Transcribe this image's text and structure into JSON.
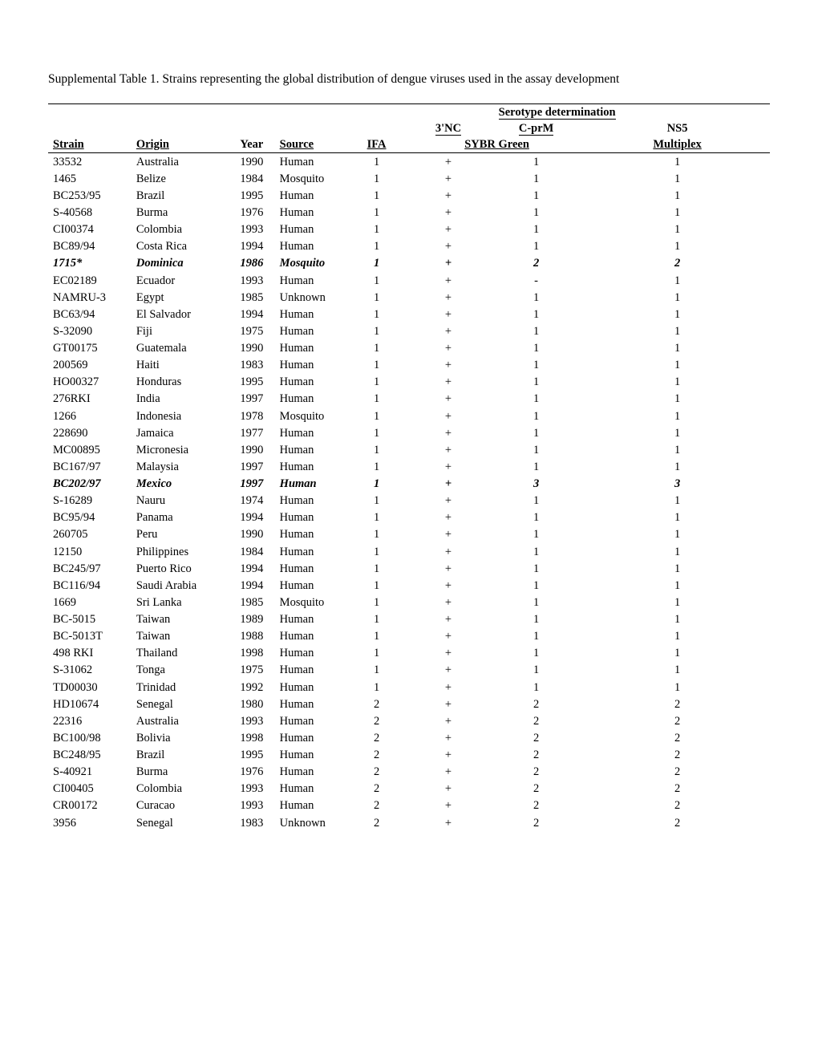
{
  "caption": "Supplemental Table 1.  Strains representing the global distribution of dengue viruses used in the assay development",
  "headers": {
    "serotype_group": "Serotype determination",
    "col_3nc": "3'NC",
    "col_cprm": "C-prM",
    "col_ns5": "NS5",
    "year": "Year",
    "strain": "Strain",
    "origin": "Origin",
    "source": "Source",
    "ifa": "IFA",
    "sybr": "SYBR Green",
    "multiplex": "Multiplex"
  },
  "rows": [
    {
      "strain": "33532",
      "origin": "Australia",
      "year": "1990",
      "source": "Human",
      "ifa": "1",
      "nc": "+",
      "cprm": "1",
      "ns5": "1"
    },
    {
      "strain": "1465",
      "origin": "Belize",
      "year": "1984",
      "source": "Mosquito",
      "ifa": "1",
      "nc": "+",
      "cprm": "1",
      "ns5": "1"
    },
    {
      "strain": "BC253/95",
      "origin": "Brazil",
      "year": "1995",
      "source": "Human",
      "ifa": "1",
      "nc": "+",
      "cprm": "1",
      "ns5": "1"
    },
    {
      "strain": "S-40568",
      "origin": "Burma",
      "year": "1976",
      "source": "Human",
      "ifa": "1",
      "nc": "+",
      "cprm": "1",
      "ns5": "1"
    },
    {
      "strain": "CI00374",
      "origin": "Colombia",
      "year": "1993",
      "source": "Human",
      "ifa": "1",
      "nc": "+",
      "cprm": "1",
      "ns5": "1"
    },
    {
      "strain": "BC89/94",
      "origin": "Costa Rica",
      "year": "1994",
      "source": "Human",
      "ifa": "1",
      "nc": "+",
      "cprm": "1",
      "ns5": "1"
    },
    {
      "strain": "1715*",
      "origin": "Dominica",
      "year": "1986",
      "source": "Mosquito",
      "ifa": "1",
      "nc": "+",
      "cprm": "2",
      "ns5": "2",
      "bold": true
    },
    {
      "strain": "EC02189",
      "origin": "Ecuador",
      "year": "1993",
      "source": "Human",
      "ifa": "1",
      "nc": "+",
      "cprm": "-",
      "ns5": "1"
    },
    {
      "strain": "NAMRU-3",
      "origin": "Egypt",
      "year": "1985",
      "source": "Unknown",
      "ifa": "1",
      "nc": "+",
      "cprm": "1",
      "ns5": "1"
    },
    {
      "strain": "BC63/94",
      "origin": "El Salvador",
      "year": "1994",
      "source": "Human",
      "ifa": "1",
      "nc": "+",
      "cprm": "1",
      "ns5": "1"
    },
    {
      "strain": "S-32090",
      "origin": "Fiji",
      "year": "1975",
      "source": "Human",
      "ifa": "1",
      "nc": "+",
      "cprm": "1",
      "ns5": "1"
    },
    {
      "strain": "GT00175",
      "origin": "Guatemala",
      "year": "1990",
      "source": "Human",
      "ifa": "1",
      "nc": "+",
      "cprm": "1",
      "ns5": "1"
    },
    {
      "strain": "200569",
      "origin": "Haiti",
      "year": "1983",
      "source": "Human",
      "ifa": "1",
      "nc": "+",
      "cprm": "1",
      "ns5": "1"
    },
    {
      "strain": "HO00327",
      "origin": "Honduras",
      "year": "1995",
      "source": "Human",
      "ifa": "1",
      "nc": "+",
      "cprm": "1",
      "ns5": "1"
    },
    {
      "strain": "276RKI",
      "origin": "India",
      "year": "1997",
      "source": "Human",
      "ifa": "1",
      "nc": "+",
      "cprm": "1",
      "ns5": "1"
    },
    {
      "strain": "1266",
      "origin": "Indonesia",
      "year": "1978",
      "source": "Mosquito",
      "ifa": "1",
      "nc": "+",
      "cprm": "1",
      "ns5": "1"
    },
    {
      "strain": "228690",
      "origin": "Jamaica",
      "year": "1977",
      "source": "Human",
      "ifa": "1",
      "nc": "+",
      "cprm": "1",
      "ns5": "1"
    },
    {
      "strain": "MC00895",
      "origin": "Micronesia",
      "year": "1990",
      "source": "Human",
      "ifa": "1",
      "nc": "+",
      "cprm": "1",
      "ns5": "1"
    },
    {
      "strain": "BC167/97",
      "origin": "Malaysia",
      "year": "1997",
      "source": "Human",
      "ifa": "1",
      "nc": "+",
      "cprm": "1",
      "ns5": "1"
    },
    {
      "strain": "BC202/97",
      "origin": "Mexico",
      "year": "1997",
      "source": "Human",
      "ifa": "1",
      "nc": "+",
      "cprm": "3",
      "ns5": "3",
      "bold": true
    },
    {
      "strain": "S-16289",
      "origin": "Nauru",
      "year": "1974",
      "source": "Human",
      "ifa": "1",
      "nc": "+",
      "cprm": "1",
      "ns5": "1"
    },
    {
      "strain": "BC95/94",
      "origin": "Panama",
      "year": "1994",
      "source": "Human",
      "ifa": "1",
      "nc": "+",
      "cprm": "1",
      "ns5": "1"
    },
    {
      "strain": "260705",
      "origin": "Peru",
      "year": "1990",
      "source": "Human",
      "ifa": "1",
      "nc": "+",
      "cprm": "1",
      "ns5": "1"
    },
    {
      "strain": "12150",
      "origin": "Philippines",
      "year": "1984",
      "source": "Human",
      "ifa": "1",
      "nc": "+",
      "cprm": "1",
      "ns5": "1"
    },
    {
      "strain": "BC245/97",
      "origin": "Puerto Rico",
      "year": "1994",
      "source": "Human",
      "ifa": "1",
      "nc": "+",
      "cprm": "1",
      "ns5": "1"
    },
    {
      "strain": "BC116/94",
      "origin": "Saudi Arabia",
      "year": "1994",
      "source": "Human",
      "ifa": "1",
      "nc": "+",
      "cprm": "1",
      "ns5": "1"
    },
    {
      "strain": "1669",
      "origin": "Sri Lanka",
      "year": "1985",
      "source": "Mosquito",
      "ifa": "1",
      "nc": "+",
      "cprm": "1",
      "ns5": "1"
    },
    {
      "strain": "BC-5015",
      "origin": "Taiwan",
      "year": "1989",
      "source": "Human",
      "ifa": "1",
      "nc": "+",
      "cprm": "1",
      "ns5": "1"
    },
    {
      "strain": "BC-5013T",
      "origin": "Taiwan",
      "year": "1988",
      "source": "Human",
      "ifa": "1",
      "nc": "+",
      "cprm": "1",
      "ns5": "1"
    },
    {
      "strain": "498 RKI",
      "origin": "Thailand",
      "year": "1998",
      "source": "Human",
      "ifa": "1",
      "nc": "+",
      "cprm": "1",
      "ns5": "1"
    },
    {
      "strain": "S-31062",
      "origin": "Tonga",
      "year": "1975",
      "source": "Human",
      "ifa": "1",
      "nc": "+",
      "cprm": "1",
      "ns5": "1"
    },
    {
      "strain": "TD00030",
      "origin": "Trinidad",
      "year": "1992",
      "source": "Human",
      "ifa": "1",
      "nc": "+",
      "cprm": "1",
      "ns5": "1"
    },
    {
      "strain": "HD10674",
      "origin": "Senegal",
      "year": "1980",
      "source": "Human",
      "ifa": "2",
      "nc": "+",
      "cprm": "2",
      "ns5": "2"
    },
    {
      "strain": "22316",
      "origin": "Australia",
      "year": "1993",
      "source": "Human",
      "ifa": "2",
      "nc": "+",
      "cprm": "2",
      "ns5": "2"
    },
    {
      "strain": "BC100/98",
      "origin": "Bolivia",
      "year": "1998",
      "source": "Human",
      "ifa": "2",
      "nc": "+",
      "cprm": "2",
      "ns5": "2"
    },
    {
      "strain": "BC248/95",
      "origin": "Brazil",
      "year": "1995",
      "source": "Human",
      "ifa": "2",
      "nc": "+",
      "cprm": "2",
      "ns5": "2"
    },
    {
      "strain": "S-40921",
      "origin": "Burma",
      "year": "1976",
      "source": "Human",
      "ifa": "2",
      "nc": "+",
      "cprm": "2",
      "ns5": "2"
    },
    {
      "strain": "CI00405",
      "origin": "Colombia",
      "year": "1993",
      "source": "Human",
      "ifa": "2",
      "nc": "+",
      "cprm": "2",
      "ns5": "2"
    },
    {
      "strain": "CR00172",
      "origin": "Curacao",
      "year": "1993",
      "source": "Human",
      "ifa": "2",
      "nc": "+",
      "cprm": "2",
      "ns5": "2"
    },
    {
      "strain": "3956",
      "origin": "Senegal",
      "year": "1983",
      "source": "Unknown",
      "ifa": "2",
      "nc": "+",
      "cprm": "2",
      "ns5": "2"
    }
  ]
}
